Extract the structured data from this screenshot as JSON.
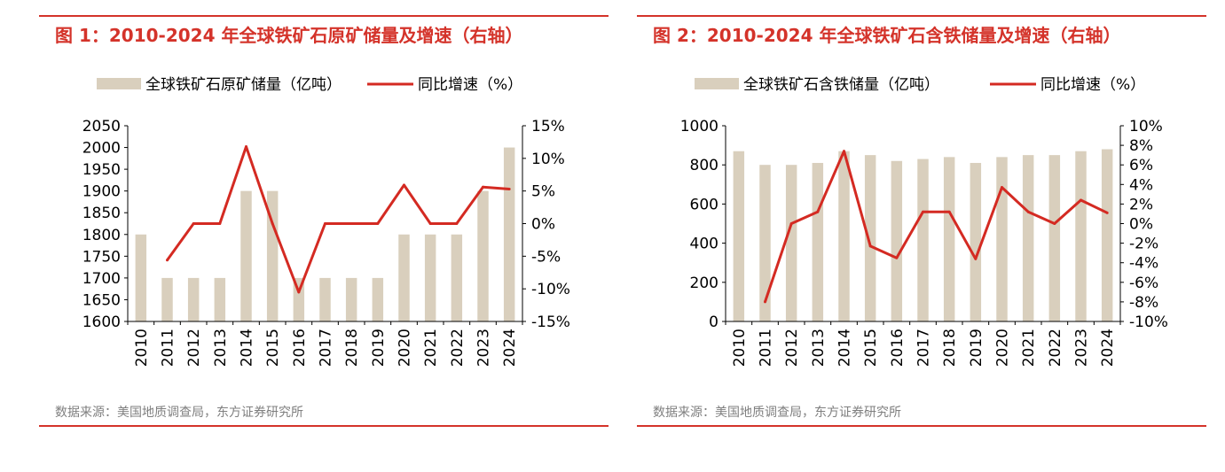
{
  "charts": [
    {
      "title": "图 1：2010-2024 年全球铁矿石原矿储量及增速（右轴）",
      "source": "数据来源：美国地质调查局，东方证券研究所",
      "colors": {
        "bar": "#d9cfbd",
        "line": "#d42a22",
        "accent": "#d4332a"
      }
    },
    {
      "title": "图 2：2010-2024 年全球铁矿石含铁储量及增速（右轴）",
      "source": "数据来源：美国地质调查局，东方证券研究所",
      "colors": {
        "bar": "#d9cfbd",
        "line": "#d42a22",
        "accent": "#d4332a"
      }
    }
  ],
  "chart_data": [
    {
      "type": "bar",
      "categories": [
        "2010",
        "2011",
        "2012",
        "2013",
        "2014",
        "2015",
        "2016",
        "2017",
        "2018",
        "2019",
        "2020",
        "2021",
        "2022",
        "2023",
        "2024"
      ],
      "series": [
        {
          "name": "全球铁矿石原矿储量（亿吨）",
          "type": "bar",
          "axis": "left",
          "values": [
            1800,
            1700,
            1700,
            1700,
            1900,
            1900,
            1700,
            1700,
            1700,
            1700,
            1800,
            1800,
            1800,
            1900,
            2000
          ]
        },
        {
          "name": "同比增速（%）",
          "type": "line",
          "axis": "right",
          "values": [
            null,
            -5.6,
            0,
            0,
            11.8,
            0,
            -10.5,
            0,
            0,
            0,
            5.9,
            0,
            0,
            5.6,
            5.3
          ]
        }
      ],
      "y_left": {
        "min": 1600,
        "max": 2050,
        "step": 50,
        "tick_labels": [
          "1600",
          "1650",
          "1700",
          "1750",
          "1800",
          "1850",
          "1900",
          "1950",
          "2000",
          "2050"
        ]
      },
      "y_right": {
        "min": -15,
        "max": 15,
        "step": 5,
        "tick_labels": [
          "-15%",
          "-10%",
          "-5%",
          "0%",
          "5%",
          "10%",
          "15%"
        ]
      },
      "legend": "top",
      "grid": false
    },
    {
      "type": "bar",
      "categories": [
        "2010",
        "2011",
        "2012",
        "2013",
        "2014",
        "2015",
        "2016",
        "2017",
        "2018",
        "2019",
        "2020",
        "2021",
        "2022",
        "2023",
        "2024"
      ],
      "series": [
        {
          "name": "全球铁矿石含铁储量（亿吨）",
          "type": "bar",
          "axis": "left",
          "values": [
            870,
            800,
            800,
            810,
            870,
            850,
            820,
            830,
            840,
            810,
            840,
            850,
            850,
            870,
            880
          ]
        },
        {
          "name": "同比增速（%）",
          "type": "line",
          "axis": "right",
          "values": [
            null,
            -8.0,
            0,
            1.2,
            7.4,
            -2.3,
            -3.5,
            1.2,
            1.2,
            -3.6,
            3.7,
            1.2,
            0,
            2.4,
            1.1
          ]
        }
      ],
      "y_left": {
        "min": 0,
        "max": 1000,
        "step": 200,
        "tick_labels": [
          "0",
          "200",
          "400",
          "600",
          "800",
          "1000"
        ]
      },
      "y_right": {
        "min": -10,
        "max": 10,
        "step": 2,
        "tick_labels": [
          "-10%",
          "-8%",
          "-6%",
          "-4%",
          "-2%",
          "0%",
          "2%",
          "4%",
          "6%",
          "8%",
          "10%"
        ]
      },
      "legend": "top",
      "grid": false
    }
  ]
}
